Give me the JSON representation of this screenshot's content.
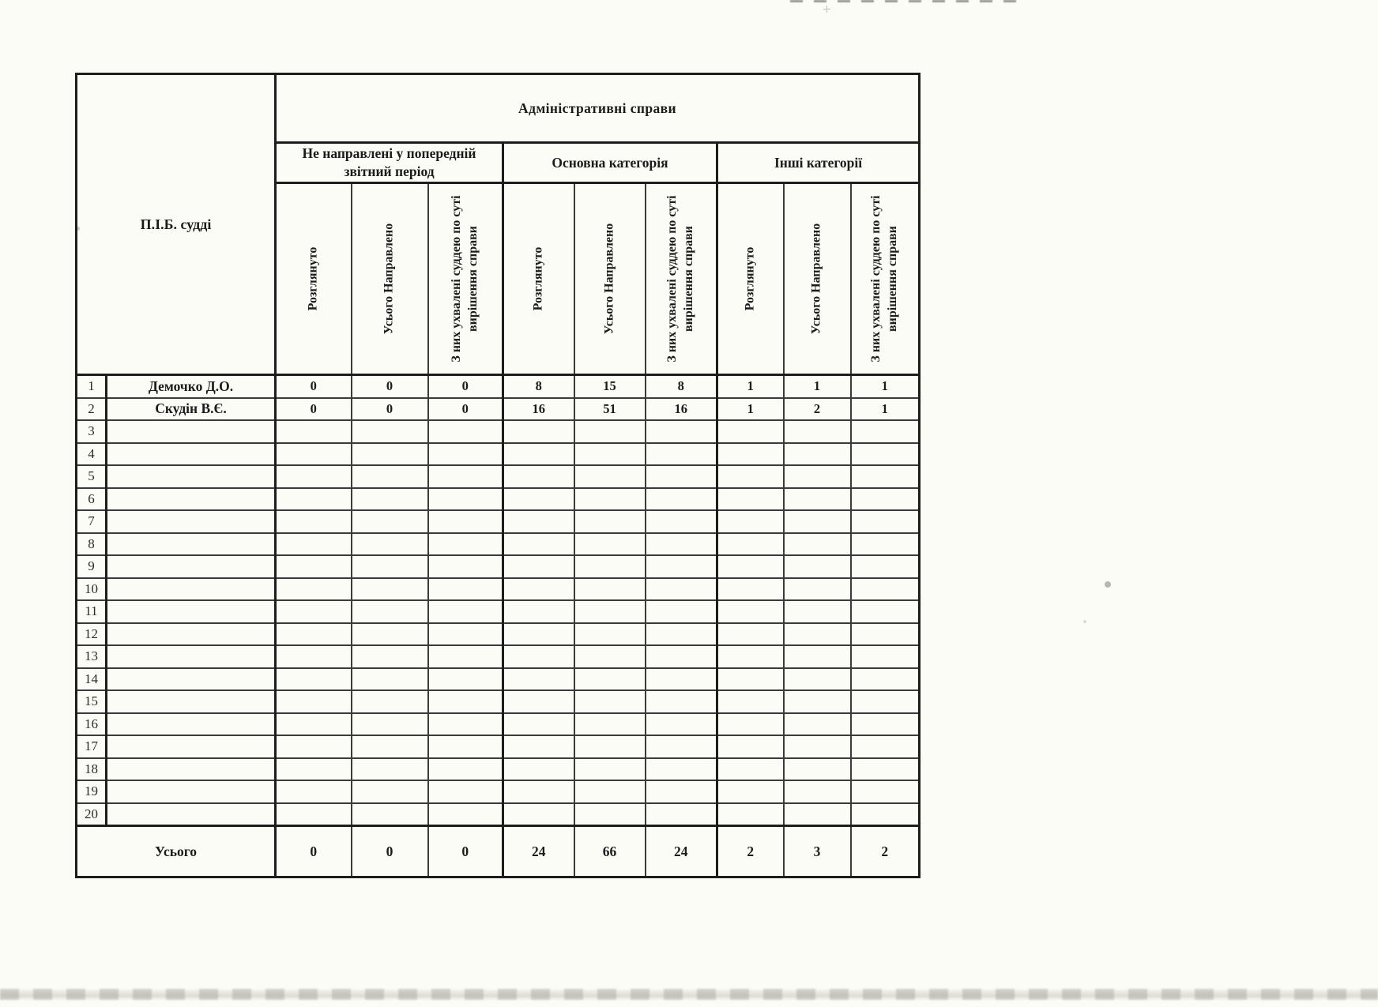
{
  "table": {
    "title": "Адміністративні справи",
    "corner_header": "П.І.Б. судді",
    "groups": [
      {
        "label": "Не направлені у попередній звітний період"
      },
      {
        "label": "Основна категорія"
      },
      {
        "label": "Інші категорії"
      }
    ],
    "sub_headers": [
      "Розглянуто",
      "Усього Направлено",
      "З них ухвалені суддею по суті вирішення справи"
    ],
    "rows": [
      {
        "num": "1",
        "name": "Демочко Д.О.",
        "values": [
          "0",
          "0",
          "0",
          "8",
          "15",
          "8",
          "1",
          "1",
          "1"
        ]
      },
      {
        "num": "2",
        "name": "Скудін В.Є.",
        "values": [
          "0",
          "0",
          "0",
          "16",
          "51",
          "16",
          "1",
          "2",
          "1"
        ]
      },
      {
        "num": "3",
        "name": "",
        "values": [
          "",
          "",
          "",
          "",
          "",
          "",
          "",
          "",
          ""
        ]
      },
      {
        "num": "4",
        "name": "",
        "values": [
          "",
          "",
          "",
          "",
          "",
          "",
          "",
          "",
          ""
        ]
      },
      {
        "num": "5",
        "name": "",
        "values": [
          "",
          "",
          "",
          "",
          "",
          "",
          "",
          "",
          ""
        ]
      },
      {
        "num": "6",
        "name": "",
        "values": [
          "",
          "",
          "",
          "",
          "",
          "",
          "",
          "",
          ""
        ]
      },
      {
        "num": "7",
        "name": "",
        "values": [
          "",
          "",
          "",
          "",
          "",
          "",
          "",
          "",
          ""
        ]
      },
      {
        "num": "8",
        "name": "",
        "values": [
          "",
          "",
          "",
          "",
          "",
          "",
          "",
          "",
          ""
        ]
      },
      {
        "num": "9",
        "name": "",
        "values": [
          "",
          "",
          "",
          "",
          "",
          "",
          "",
          "",
          ""
        ]
      },
      {
        "num": "10",
        "name": "",
        "values": [
          "",
          "",
          "",
          "",
          "",
          "",
          "",
          "",
          ""
        ]
      },
      {
        "num": "11",
        "name": "",
        "values": [
          "",
          "",
          "",
          "",
          "",
          "",
          "",
          "",
          ""
        ]
      },
      {
        "num": "12",
        "name": "",
        "values": [
          "",
          "",
          "",
          "",
          "",
          "",
          "",
          "",
          ""
        ]
      },
      {
        "num": "13",
        "name": "",
        "values": [
          "",
          "",
          "",
          "",
          "",
          "",
          "",
          "",
          ""
        ]
      },
      {
        "num": "14",
        "name": "",
        "values": [
          "",
          "",
          "",
          "",
          "",
          "",
          "",
          "",
          ""
        ]
      },
      {
        "num": "15",
        "name": "",
        "values": [
          "",
          "",
          "",
          "",
          "",
          "",
          "",
          "",
          ""
        ]
      },
      {
        "num": "16",
        "name": "",
        "values": [
          "",
          "",
          "",
          "",
          "",
          "",
          "",
          "",
          ""
        ]
      },
      {
        "num": "17",
        "name": "",
        "values": [
          "",
          "",
          "",
          "",
          "",
          "",
          "",
          "",
          ""
        ]
      },
      {
        "num": "18",
        "name": "",
        "values": [
          "",
          "",
          "",
          "",
          "",
          "",
          "",
          "",
          ""
        ]
      },
      {
        "num": "19",
        "name": "",
        "values": [
          "",
          "",
          "",
          "",
          "",
          "",
          "",
          "",
          ""
        ]
      },
      {
        "num": "20",
        "name": "",
        "values": [
          "",
          "",
          "",
          "",
          "",
          "",
          "",
          "",
          ""
        ]
      }
    ],
    "total": {
      "label": "Усього",
      "values": [
        "0",
        "0",
        "0",
        "24",
        "66",
        "24",
        "2",
        "3",
        "2"
      ]
    }
  }
}
